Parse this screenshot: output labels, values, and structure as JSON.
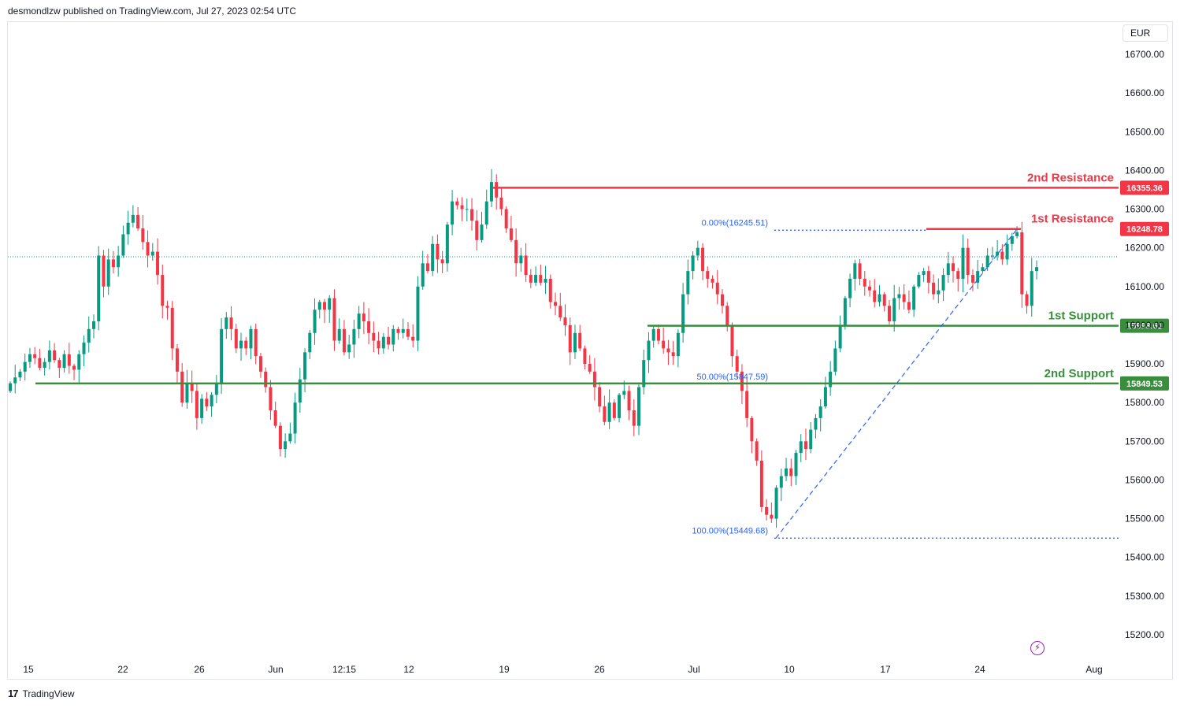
{
  "header": {
    "text": "desmondlzw published on TradingView.com, Jul 27, 2023 02:54 UTC"
  },
  "currency": "EUR",
  "footer": {
    "logo": "17",
    "brand": "TradingView"
  },
  "chart_data": {
    "type": "candlestick",
    "y_axis": {
      "ticks": [
        "16700.00",
        "16600.00",
        "16500.00",
        "16400.00",
        "16300.00",
        "16200.00",
        "16100.00",
        "16000.00",
        "15900.00",
        "15800.00",
        "15700.00",
        "15600.00",
        "15500.00",
        "15400.00",
        "15300.00",
        "15200.00"
      ],
      "ylim": [
        15145,
        16810
      ]
    },
    "x_axis": {
      "ticks": [
        "15",
        "22",
        "26",
        "Jun",
        "12:15",
        "12",
        "19",
        "26",
        "Jul",
        "10",
        "17",
        "24",
        "Aug"
      ]
    },
    "colors": {
      "up": "#089981",
      "down": "#f23645",
      "resistance": "#f23645",
      "support": "#388e3c",
      "fib": "#2962ff"
    },
    "levels": [
      {
        "name": "2nd Resistance",
        "value": 16355.36,
        "label": "16355.36",
        "kind": "resistance"
      },
      {
        "name": "1st Resistance",
        "value": 16248.78,
        "label": "16248.78",
        "kind": "resistance"
      },
      {
        "name": "1st Support",
        "value": 15998.61,
        "label": "15998.61",
        "kind": "support"
      },
      {
        "name": "2nd Support",
        "value": 15849.53,
        "label": "15849.53",
        "kind": "support"
      }
    ],
    "fib": [
      {
        "label": "0.00%(16245.51)",
        "value": 16245.51
      },
      {
        "label": "50.00%(15847.59)",
        "value": 15847.59
      },
      {
        "label": "100.00%(15449.68)",
        "value": 15449.68
      }
    ],
    "last_price": 16177,
    "closes": [
      15850,
      15865,
      15880,
      15905,
      15925,
      15915,
      15890,
      15905,
      15935,
      15910,
      15890,
      15925,
      15895,
      15885,
      15925,
      15955,
      15990,
      16010,
      16180,
      16100,
      16170,
      16150,
      16180,
      16235,
      16265,
      16285,
      16250,
      16215,
      16180,
      16190,
      16130,
      16050,
      16045,
      15940,
      15880,
      15800,
      15850,
      15830,
      15760,
      15810,
      15790,
      15820,
      15850,
      15990,
      16020,
      15990,
      15940,
      15960,
      15940,
      15990,
      15920,
      15880,
      15840,
      15780,
      15740,
      15680,
      15700,
      15720,
      15800,
      15860,
      15930,
      15980,
      16040,
      16060,
      16040,
      16070,
      15960,
      15990,
      15930,
      15950,
      15990,
      16030,
      16010,
      15980,
      15960,
      15940,
      15970,
      15950,
      15990,
      15980,
      15990,
      15970,
      15960,
      16100,
      16160,
      16140,
      16210,
      16170,
      16160,
      16260,
      16320,
      16310,
      16300,
      16300,
      16270,
      16220,
      16260,
      16320,
      16370,
      16330,
      16300,
      16250,
      16220,
      16160,
      16180,
      16130,
      16110,
      16130,
      16110,
      16120,
      16060,
      16050,
      16020,
      16000,
      15930,
      15980,
      15940,
      15900,
      15880,
      15840,
      15790,
      15750,
      15800,
      15760,
      15820,
      15830,
      15780,
      15740,
      15840,
      15910,
      15960,
      15990,
      15960,
      15940,
      15930,
      15920,
      15980,
      16080,
      16140,
      16180,
      16200,
      16140,
      16120,
      16110,
      16080,
      16050,
      16000,
      15920,
      15880,
      15830,
      15760,
      15700,
      15650,
      15530,
      15510,
      15500,
      15580,
      15610,
      15630,
      15610,
      15670,
      15700,
      15680,
      15730,
      15760,
      15790,
      15840,
      15880,
      15940,
      16000,
      16070,
      16120,
      16160,
      16120,
      16100,
      16090,
      16060,
      16080,
      16050,
      16010,
      16070,
      16080,
      16060,
      16040,
      16100,
      16130,
      16140,
      16110,
      16080,
      16090,
      16130,
      16160,
      16140,
      16120,
      16200,
      16130,
      16110,
      16140,
      16150,
      16180,
      16180,
      16190,
      16170,
      16210,
      16230,
      16240,
      16080,
      16050,
      16140,
      16150
    ]
  }
}
